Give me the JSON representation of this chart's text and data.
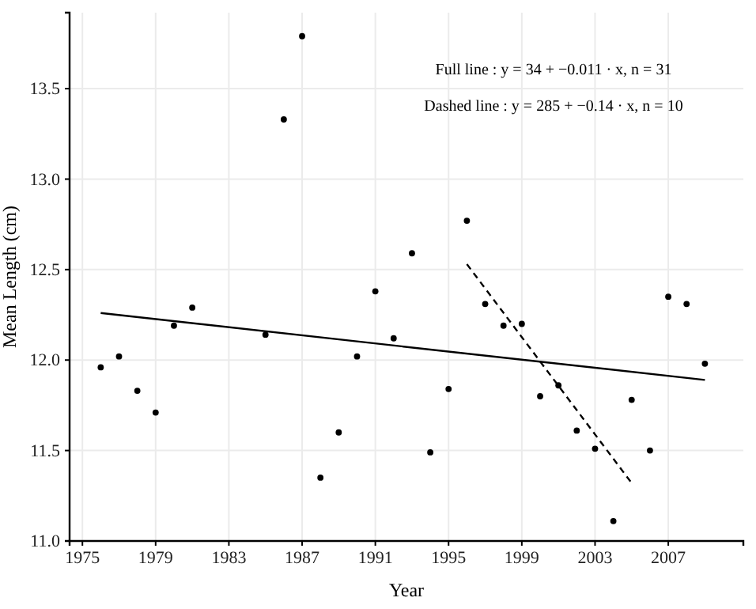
{
  "chart_data": {
    "type": "scatter",
    "xlabel": "Year",
    "ylabel": "Mean Length (cm)",
    "xlim": [
      1974.3,
      2011.1
    ],
    "xticks": [
      1975,
      1979,
      1983,
      1987,
      1991,
      1995,
      1999,
      2003,
      2007
    ],
    "ylim": [
      11.0,
      13.92
    ],
    "yticks": [
      {
        "value": 11,
        "label": "11.0"
      },
      11.5,
      {
        "value": 12,
        "label": "12.0"
      },
      12.5,
      {
        "value": 13,
        "label": "13.0"
      },
      13.5
    ],
    "grid": true,
    "marker": "circle",
    "annotations": [
      "Full line : y = 34 + −0.011 · x,  n = 31",
      "Dashed line : y = 285 + −0.14 · x,  n = 10"
    ],
    "series": [
      {
        "color": "#000000",
        "x": [
          1976,
          1977,
          1978,
          1979,
          1980,
          1981,
          1985,
          1986,
          1987,
          1988,
          1989,
          1990,
          1991,
          1992,
          1993,
          1994,
          1995,
          1996,
          1997,
          1998,
          1999,
          2000,
          2001,
          2002,
          2003,
          2004,
          2005,
          2006,
          2007,
          2008,
          2009
        ],
        "values": [
          11.96,
          12.02,
          11.83,
          11.71,
          12.19,
          12.29,
          12.14,
          13.33,
          13.79,
          11.35,
          11.6,
          12.02,
          12.38,
          12.12,
          12.59,
          11.49,
          11.84,
          12.77,
          12.31,
          12.19,
          12.2,
          11.8,
          11.86,
          11.61,
          11.51,
          11.11,
          11.78,
          11.5,
          12.35,
          12.31,
          11.98
        ]
      },
      {
        "type": "line",
        "color": "#000000",
        "line_style": "solid",
        "marker": "none",
        "x": [
          1976,
          2009
        ],
        "values": [
          12.26,
          11.89
        ]
      },
      {
        "type": "line",
        "color": "#000000",
        "line_style": "dashed",
        "marker": "none",
        "x": [
          1996,
          2005
        ],
        "values": [
          12.53,
          11.32
        ]
      }
    ]
  }
}
